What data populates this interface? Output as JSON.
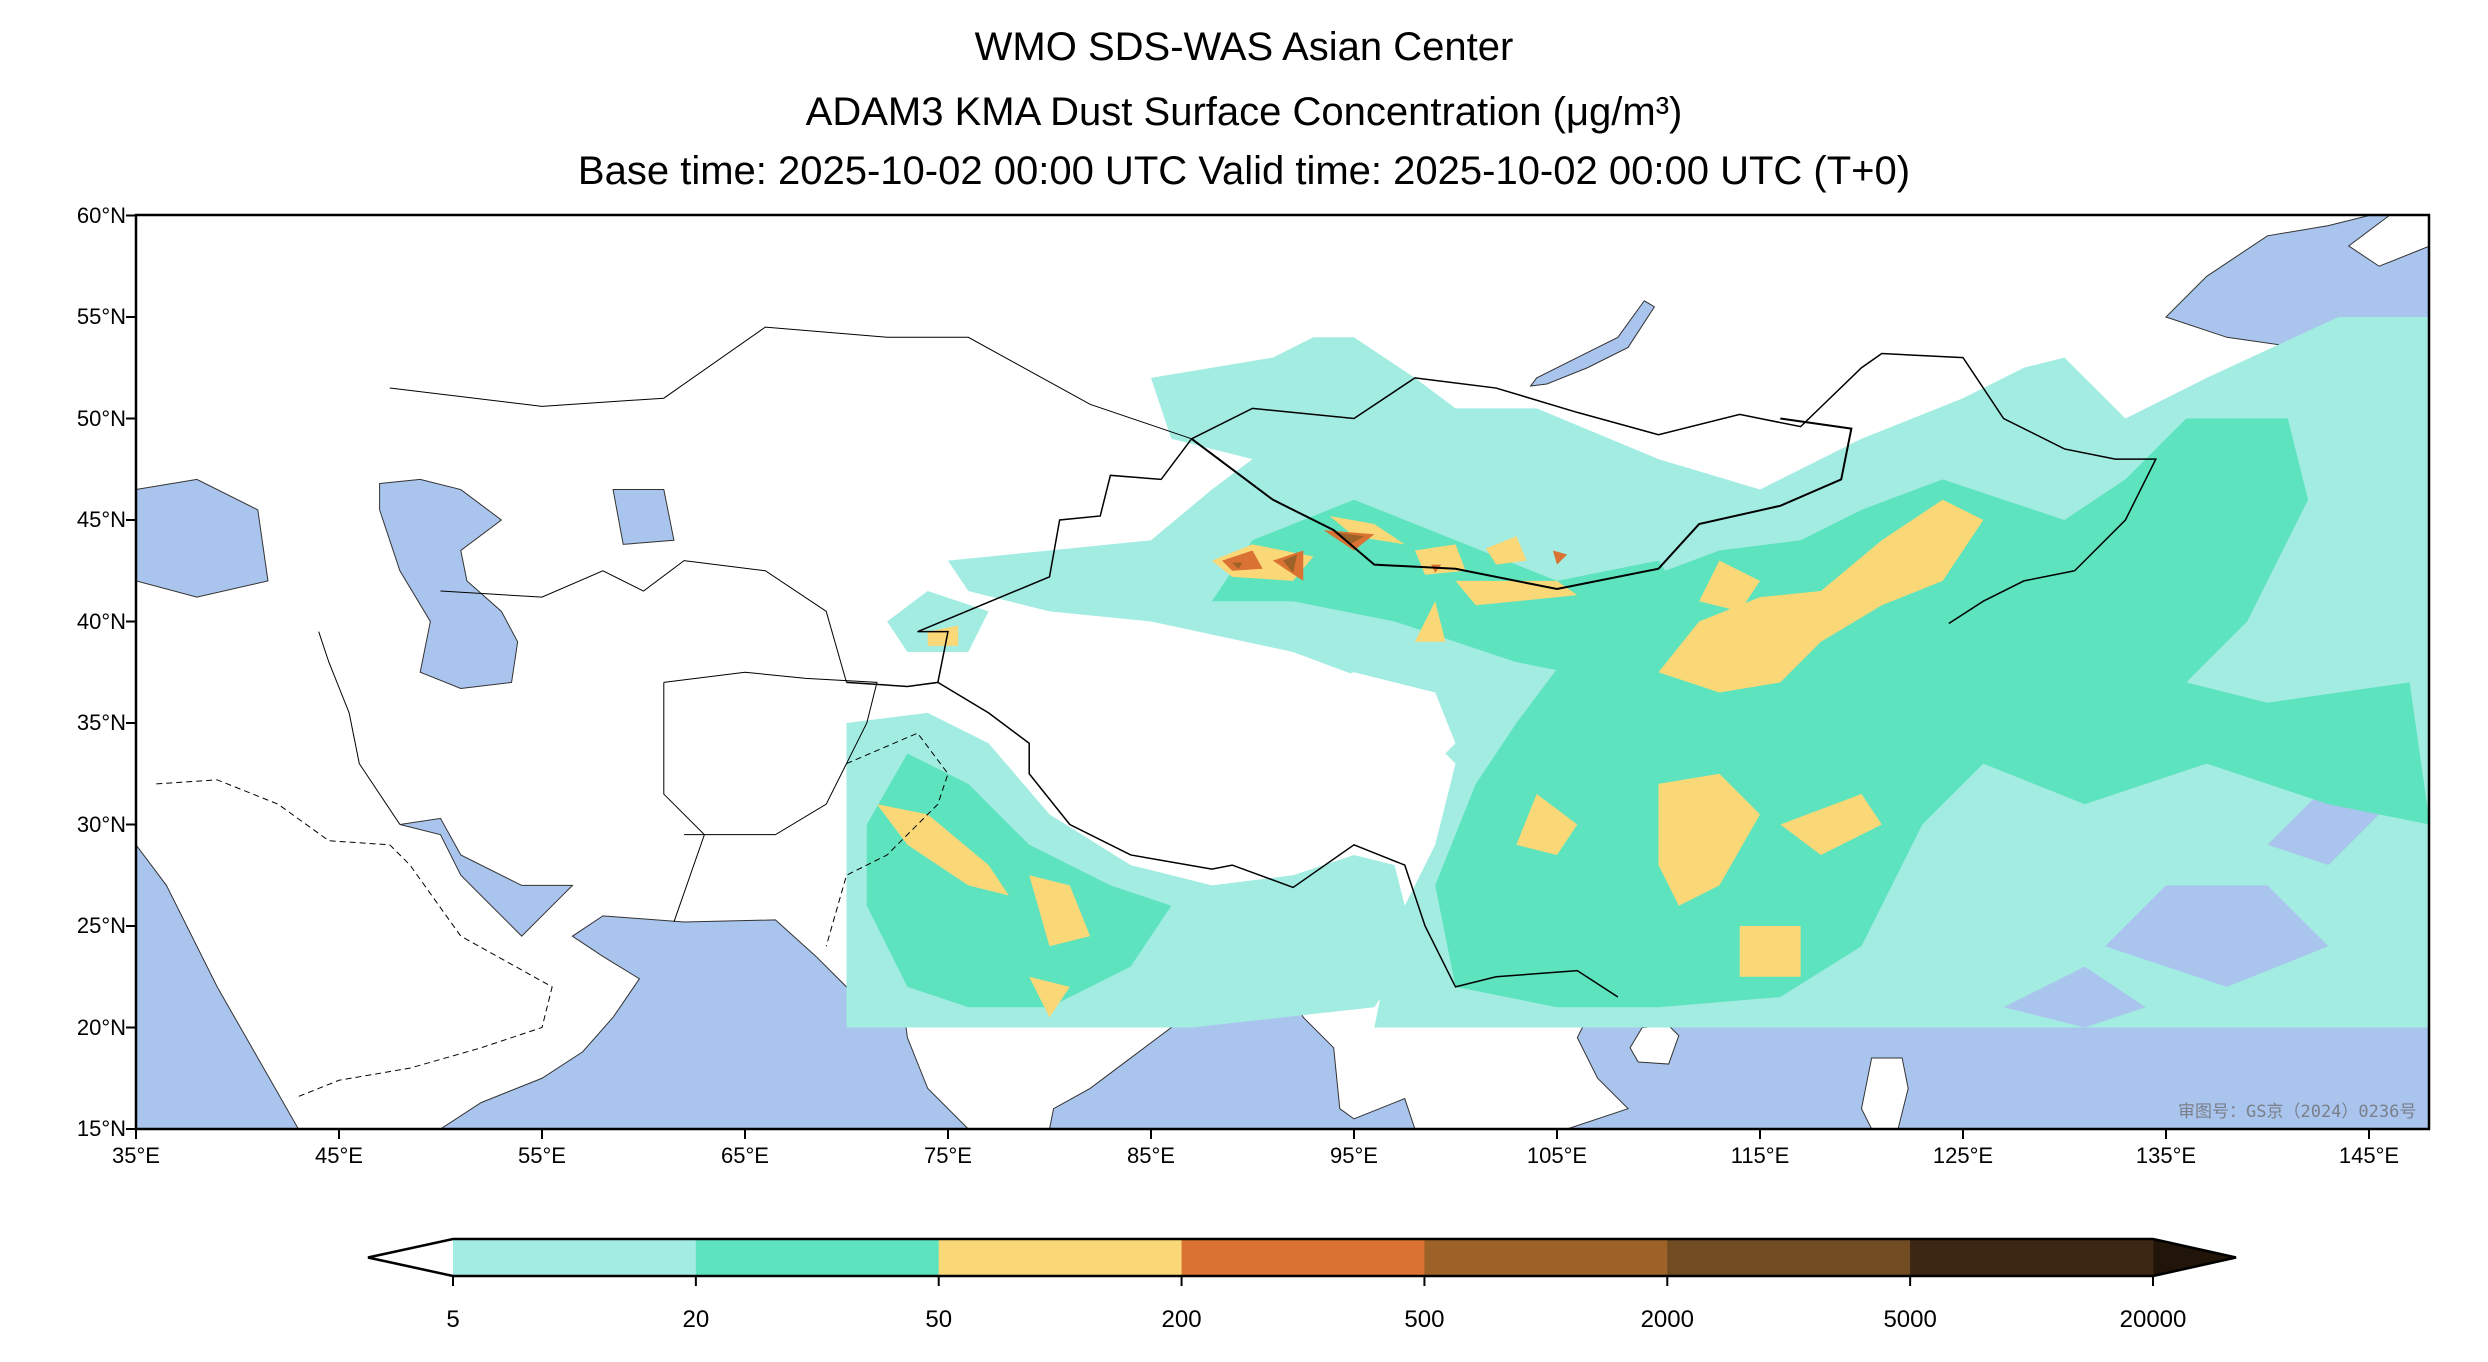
{
  "header": {
    "title_line1": "WMO SDS-WAS Asian Center",
    "title_line2": "ADAM3 KMA Dust Surface Concentration (μg/m³)",
    "title_line3": "Base time: 2025-10-02 00:00 UTC Valid time: 2025-10-02 00:00 UTC (T+0)"
  },
  "axes": {
    "lat_labels": [
      "60°N",
      "55°N",
      "50°N",
      "45°N",
      "40°N",
      "35°N",
      "30°N",
      "25°N",
      "20°N",
      "15°N"
    ],
    "lon_labels": [
      "35°E",
      "45°E",
      "55°E",
      "65°E",
      "75°E",
      "85°E",
      "95°E",
      "105°E",
      "115°E",
      "125°E",
      "135°E",
      "145°E"
    ]
  },
  "colorbar": {
    "labels": [
      "5",
      "20",
      "50",
      "200",
      "500",
      "2000",
      "5000",
      "20000"
    ],
    "colors": [
      "#a3ece2",
      "#5de3bd",
      "#fbd877",
      "#d97232",
      "#9c6227",
      "#714b22",
      "#3b2614"
    ],
    "under_color": "#ffffff",
    "over_color": "#201508"
  },
  "map": {
    "ocean_color": "#aac5ed",
    "watermark": "审图号：GS京（2024）0236号"
  }
}
